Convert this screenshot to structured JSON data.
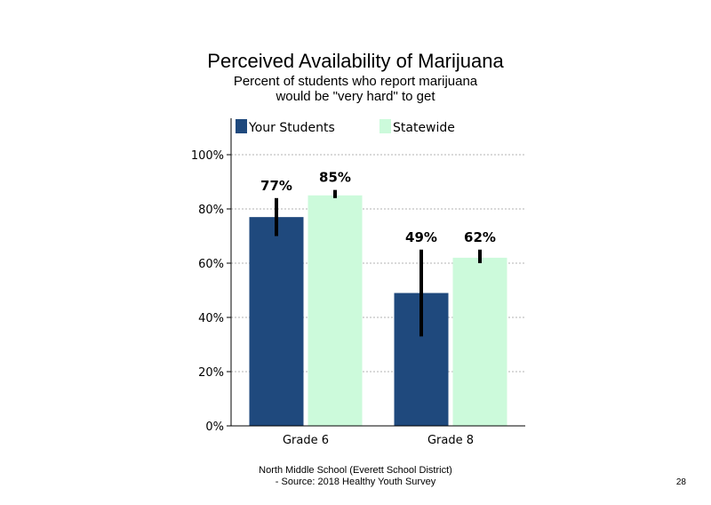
{
  "slide": {
    "title": "Perceived Availability of Marijuana",
    "subtitle_line1": "Percent of students who report marijuana",
    "subtitle_line2": "would be \"very hard\" to get",
    "footer_line1": "North Middle School (Everett School District)",
    "footer_line2": "- Source: 2018 Healthy Youth Survey",
    "page_number": "28"
  },
  "chart_data": {
    "type": "bar",
    "categories": [
      "Grade 6",
      "Grade 8"
    ],
    "series": [
      {
        "name": "Your Students",
        "color": "#1f497d",
        "values": [
          77,
          49
        ],
        "labels": [
          "77%",
          "49%"
        ],
        "error_low": [
          70,
          33
        ],
        "error_high": [
          84,
          65
        ]
      },
      {
        "name": "Statewide",
        "color": "#ccfadb",
        "values": [
          85,
          62
        ],
        "labels": [
          "85%",
          "62%"
        ],
        "error_low": [
          84,
          60
        ],
        "error_high": [
          87,
          65
        ]
      }
    ],
    "ylim": [
      0,
      100
    ],
    "yticks": [
      0,
      20,
      40,
      60,
      80,
      100
    ],
    "ytick_labels": [
      "0%",
      "20%",
      "40%",
      "60%",
      "80%",
      "100%"
    ],
    "grid": "dotted horizontal",
    "legend": "top"
  }
}
